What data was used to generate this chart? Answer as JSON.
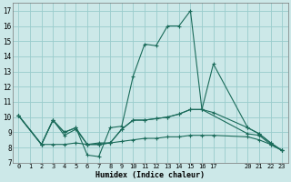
{
  "xlabel": "Humidex (Indice chaleur)",
  "bg_color": "#cce8e8",
  "grid_color": "#99cccc",
  "line_color": "#1a6b5a",
  "ylim": [
    7,
    17.5
  ],
  "yticks": [
    7,
    8,
    9,
    10,
    11,
    12,
    13,
    14,
    15,
    16,
    17
  ],
  "xtick_labels": [
    "0",
    "1",
    "2",
    "3",
    "4",
    "5",
    "6",
    "7",
    "8",
    "9",
    "10",
    "11",
    "12",
    "13",
    "14",
    "15",
    "16",
    "17",
    "",
    "",
    "20",
    "21",
    "22",
    "23"
  ],
  "xtick_positions": [
    0,
    1,
    2,
    3,
    4,
    5,
    6,
    7,
    8,
    9,
    10,
    11,
    12,
    13,
    14,
    15,
    16,
    17,
    18,
    19,
    20,
    21,
    22,
    23
  ],
  "xlim": [
    -0.5,
    23.5
  ],
  "series": [
    {
      "x": [
        0,
        2,
        3,
        4,
        5,
        6,
        7,
        8,
        9,
        10,
        11,
        12,
        13,
        14,
        15,
        16,
        20,
        21,
        22,
        23
      ],
      "y": [
        10.1,
        8.2,
        9.8,
        9.0,
        9.3,
        7.5,
        7.4,
        9.3,
        9.4,
        12.7,
        14.8,
        14.7,
        16.0,
        16.0,
        17.0,
        10.5,
        8.9,
        8.8,
        8.2,
        7.8
      ],
      "connected": false
    },
    {
      "x": [
        0,
        2,
        3,
        4,
        5,
        6,
        7,
        8,
        9,
        10,
        11,
        12,
        13,
        14,
        15,
        16,
        17,
        20,
        21,
        22,
        23
      ],
      "y": [
        10.1,
        8.2,
        9.8,
        8.8,
        9.2,
        8.2,
        8.2,
        8.3,
        9.2,
        9.8,
        9.8,
        9.9,
        10.0,
        10.2,
        10.5,
        10.5,
        10.3,
        9.3,
        8.9,
        8.3,
        7.8
      ],
      "connected": true
    },
    {
      "x": [
        0,
        2,
        3,
        4,
        5,
        6,
        7,
        8,
        9,
        10,
        11,
        12,
        13,
        14,
        15,
        16,
        17,
        20,
        21,
        22,
        23
      ],
      "y": [
        10.1,
        8.2,
        8.2,
        8.2,
        8.3,
        8.2,
        8.3,
        8.3,
        8.4,
        8.5,
        8.6,
        8.6,
        8.7,
        8.7,
        8.8,
        8.8,
        8.8,
        8.7,
        8.5,
        8.2,
        7.8
      ],
      "connected": true
    },
    {
      "x": [
        0,
        2,
        3,
        4,
        5,
        6,
        7,
        8,
        9,
        10,
        11,
        12,
        13,
        14,
        15,
        16,
        17,
        20,
        21,
        22,
        23
      ],
      "y": [
        10.1,
        8.2,
        9.8,
        9.0,
        9.3,
        8.2,
        8.2,
        8.3,
        9.2,
        9.8,
        9.8,
        9.9,
        10.0,
        10.2,
        10.5,
        10.5,
        13.5,
        9.3,
        8.9,
        8.3,
        7.8
      ],
      "connected": true
    }
  ]
}
